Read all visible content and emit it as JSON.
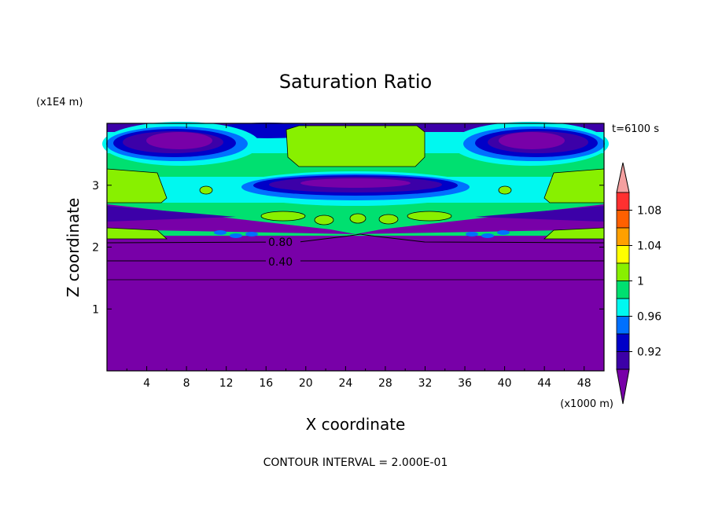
{
  "chart_data": {
    "type": "heatmap",
    "title": "Saturation Ratio",
    "xlabel": "X coordinate",
    "ylabel": "Z coordinate",
    "x_unit": "(x1000 m)",
    "y_unit": "(x1E4 m)",
    "time_label": "t=6100 s",
    "footer": "CONTOUR INTERVAL = 2.000E-01",
    "xlim": [
      0,
      50
    ],
    "ylim": [
      0,
      4
    ],
    "x_ticks": [
      "4",
      "8",
      "12",
      "16",
      "20",
      "24",
      "28",
      "32",
      "36",
      "40",
      "44",
      "48"
    ],
    "y_ticks": [
      "1",
      "2",
      "3"
    ],
    "colorbar": {
      "tick_labels": [
        "1.08",
        "1.04",
        "1",
        "0.96",
        "0.92"
      ],
      "colors": [
        "#f4a0a0",
        "#ff3030",
        "#ff6000",
        "#ffa000",
        "#ffff00",
        "#88f000",
        "#00e070",
        "#00f8f0",
        "#0070ff",
        "#0000c8",
        "#3c00a8",
        "#7800a8"
      ]
    },
    "contour_labels": [
      "0.80",
      "0.40"
    ]
  }
}
